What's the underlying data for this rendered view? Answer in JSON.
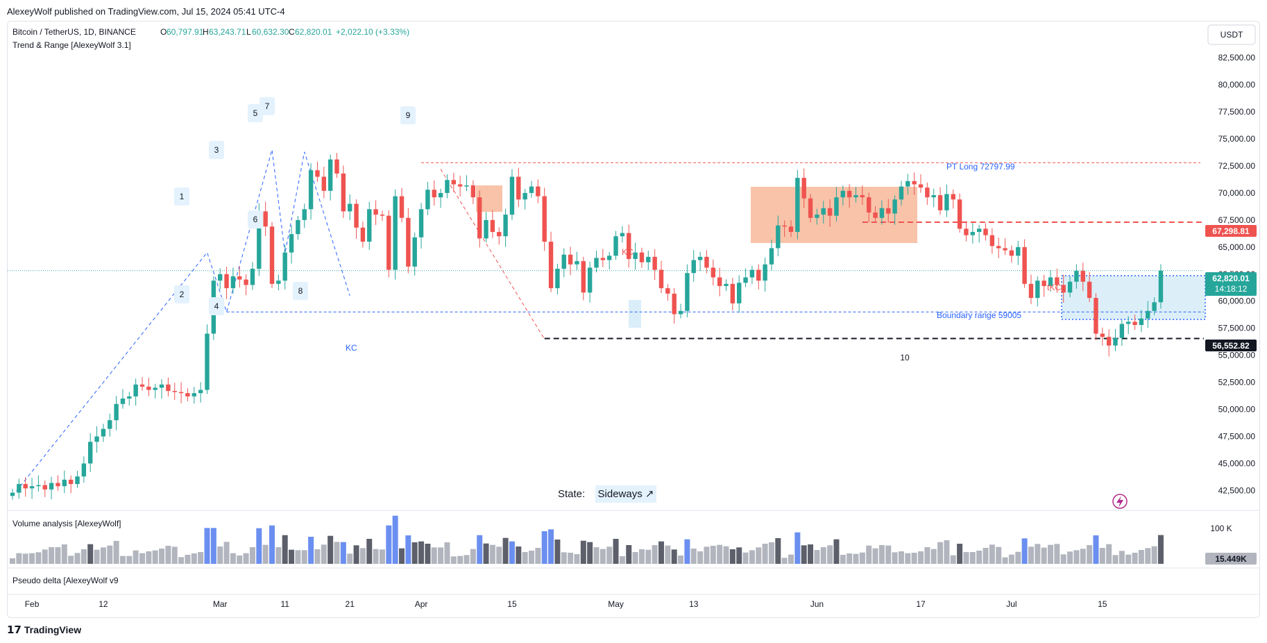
{
  "publisher": "AlexeyWolf published on TradingView.com, Jul 15, 2024 05:41 UTC-4",
  "symbol": {
    "title": "Bitcoin / TetherUS, 1D, BINANCE",
    "open_label": "O",
    "open": "60,797.91",
    "high_label": "H",
    "high": "63,243.71",
    "low_label": "L",
    "low": "60,632.30",
    "close_label": "C",
    "close": "62,820.01",
    "change": "+2,022.10 (+3.33%)"
  },
  "indicators": {
    "trend_range": "Trend & Range [AlexeyWolf 3.1]",
    "volume": "Volume analysis [AlexeyWolf]",
    "delta": "Pseudo delta [AlexeyWolf v9"
  },
  "currency_button": "USDT",
  "state": {
    "label": "State:",
    "value": "Sideways ↗"
  },
  "annotations": {
    "pt_long": "PT Long 72797.99",
    "boundary": "Boundary range 59005",
    "tkc": "tKC",
    "kc": "KC",
    "kc_upper": "KC",
    "wave_labels": [
      "1",
      "2",
      "3",
      "4",
      "5",
      "6",
      "7",
      "8",
      "9",
      "10"
    ]
  },
  "price_badges": {
    "resistance": "67,298.81",
    "last_price": "62,820.01",
    "countdown": "14:18:12",
    "support": "56,552.82",
    "volume_value": "15.449K",
    "volume_tick": "100 K"
  },
  "footer_brand": "TradingView",
  "colors": {
    "up": "#26a69a",
    "down": "#ef5350",
    "volume_gray": "#b2b5be",
    "volume_dark": "#5d606b",
    "volume_blue": "#6b8ff0",
    "accent_blue": "#2962ff",
    "range_box": "#f7b99a",
    "boundary_box": "#d6ecf8"
  },
  "chart_data": {
    "type": "candlestick",
    "title": "Bitcoin / TetherUS, 1D, BINANCE",
    "ylim": [
      41500,
      84500
    ],
    "y_ticks": [
      "82,500.00",
      "80,000.00",
      "77,500.00",
      "75,000.00",
      "72,500.00",
      "70,000.00",
      "67,500.00",
      "65,000.00",
      "62,500.00",
      "60,000.00",
      "57,500.00",
      "55,000.00",
      "52,500.00",
      "50,000.00",
      "47,500.00",
      "45,000.00",
      "42,500.00"
    ],
    "x_ticks": [
      {
        "label": "Feb",
        "index": 3
      },
      {
        "label": "12",
        "index": 14
      },
      {
        "label": "Mar",
        "index": 32
      },
      {
        "label": "11",
        "index": 42
      },
      {
        "label": "21",
        "index": 52
      },
      {
        "label": "Apr",
        "index": 63
      },
      {
        "label": "15",
        "index": 77
      },
      {
        "label": "May",
        "index": 93
      },
      {
        "label": "13",
        "index": 105
      },
      {
        "label": "Jun",
        "index": 124
      },
      {
        "label": "17",
        "index": 140
      },
      {
        "label": "Jul",
        "index": 154
      },
      {
        "label": "15",
        "index": 168
      }
    ],
    "levels": {
      "pt_long": 72797.99,
      "resistance": 67298.81,
      "boundary": 59005,
      "support": 56552.82,
      "last": 62820.01
    },
    "closes": [
      42300,
      43100,
      42700,
      42900,
      43000,
      42600,
      43200,
      42900,
      43500,
      43100,
      43800,
      45000,
      47000,
      47500,
      48200,
      49000,
      50500,
      51000,
      51200,
      52300,
      52100,
      51800,
      52000,
      52300,
      51700,
      51600,
      51500,
      51200,
      51500,
      51800,
      57000,
      61900,
      62500,
      61200,
      62300,
      62000,
      61500,
      63000,
      68300,
      66900,
      61600,
      61900,
      64500,
      66200,
      67500,
      68500,
      72100,
      71500,
      70200,
      73100,
      71800,
      68300,
      69000,
      66800,
      65500,
      68500,
      68000,
      67900,
      62900,
      69700,
      67700,
      63200,
      65900,
      68500,
      70300,
      69600,
      70000,
      71200,
      70800,
      70600,
      70700,
      69600,
      65800,
      67500,
      66400,
      66000,
      68000,
      71500,
      69400,
      70000,
      70600,
      69700,
      65500,
      61200,
      63000,
      64300,
      63400,
      63700,
      60800,
      63100,
      64000,
      63800,
      64200,
      66000,
      66300,
      63900,
      64500,
      63600,
      64100,
      62900,
      61200,
      60700,
      58800,
      59100,
      62600,
      63800,
      64100,
      63100,
      62200,
      61400,
      61600,
      59800,
      61700,
      62200,
      62900,
      61900,
      63400,
      64900,
      67000,
      66900,
      66400,
      71400,
      69500,
      67700,
      68000,
      68600,
      67900,
      69600,
      70200,
      69600,
      69800,
      69600,
      68200,
      67700,
      68600,
      68100,
      69400,
      70600,
      71100,
      70800,
      70500,
      69600,
      69800,
      68400,
      69900,
      69400,
      66700,
      66100,
      66400,
      66700,
      66100,
      65100,
      64900,
      64700,
      64200,
      65000,
      61600,
      60300,
      61900,
      61400,
      62200,
      61500,
      60800,
      61800,
      62800,
      61800,
      60300,
      57000,
      56700,
      55900,
      56600,
      57900,
      58100,
      57800,
      58400,
      59100,
      59900,
      62820
    ]
  }
}
